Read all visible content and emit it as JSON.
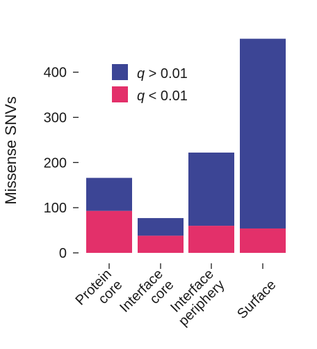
{
  "chart_data": {
    "type": "bar",
    "stacked": true,
    "categories": [
      [
        "Protein",
        "core"
      ],
      [
        "Interface",
        "core"
      ],
      [
        "Interface",
        "periphery"
      ],
      [
        "Surface"
      ]
    ],
    "series": [
      {
        "name": "q < 0.01",
        "color": "#e3306a",
        "values": [
          93,
          38,
          60,
          54
        ]
      },
      {
        "name": "q > 0.01",
        "color": "#3c4595",
        "values": [
          73,
          39,
          162,
          420
        ]
      }
    ],
    "ylabel": "Missense SNVs",
    "xlabel": "",
    "yticks": [
      0,
      100,
      200,
      300,
      400
    ],
    "ylim": [
      0,
      480
    ],
    "legend": {
      "position": "top-left",
      "entries": [
        {
          "symbol": "q",
          "op": ">",
          "value": "0.01",
          "color": "#3c4595"
        },
        {
          "symbol": "q",
          "op": "<",
          "value": "0.01",
          "color": "#e3306a"
        }
      ]
    },
    "grid": false
  }
}
